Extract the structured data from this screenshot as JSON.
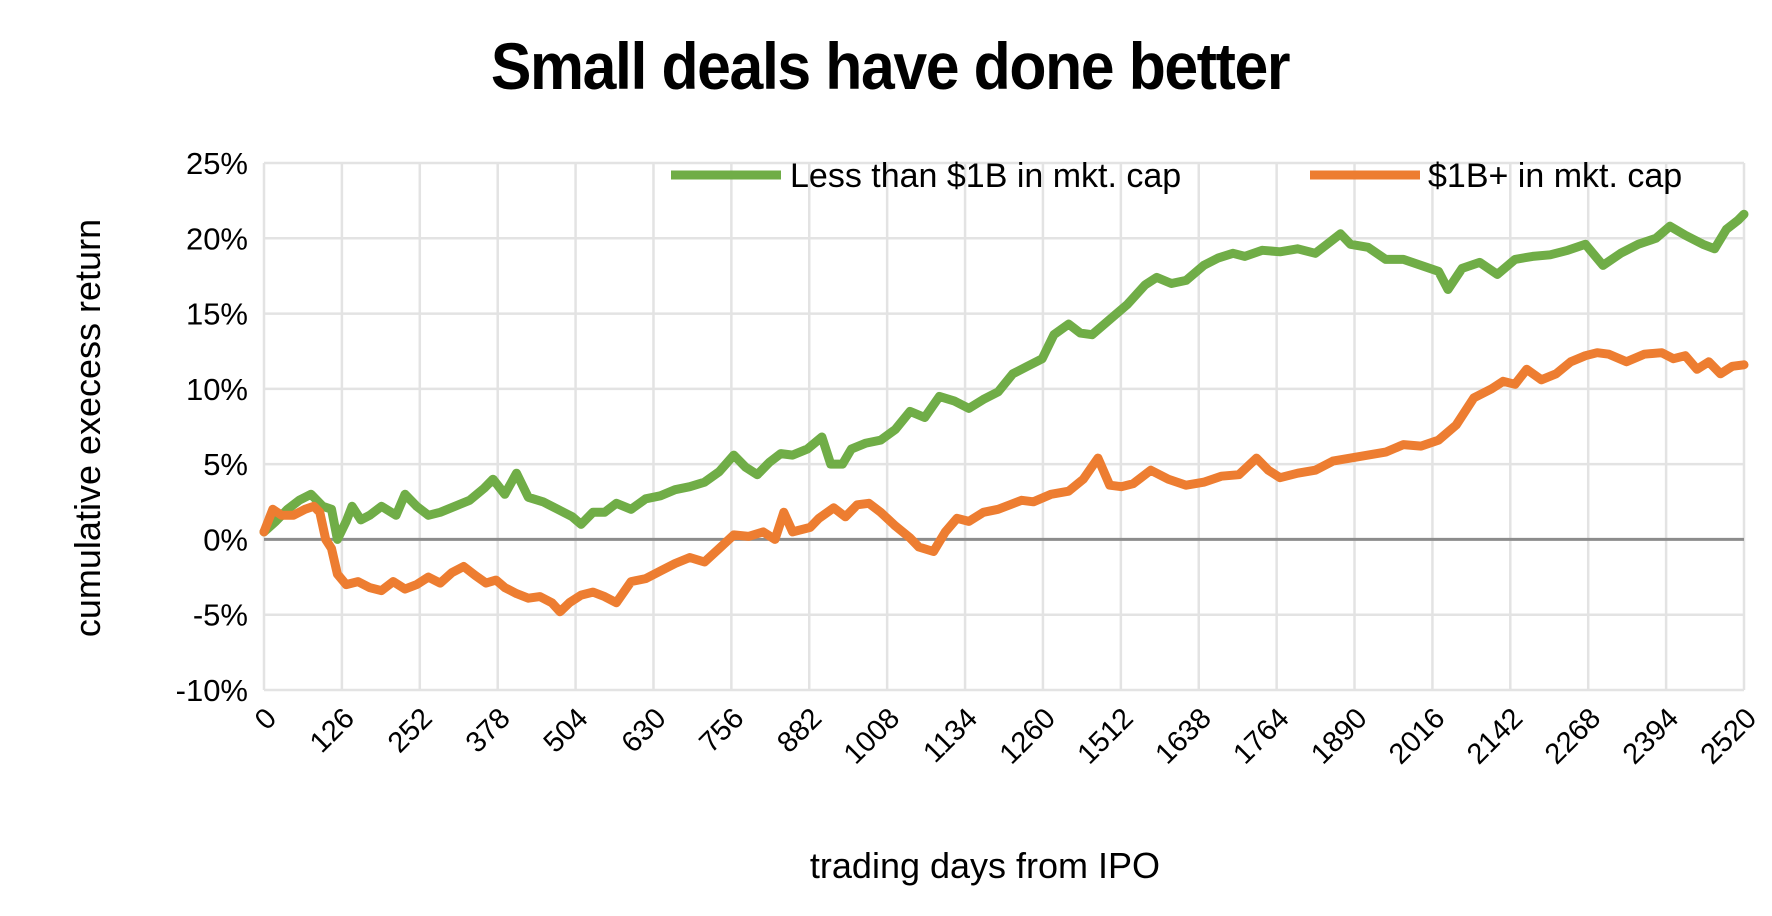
{
  "chart_data": {
    "type": "line",
    "title": "Small deals have done better",
    "xlabel": "trading days from IPO",
    "ylabel": "cumulative execess return",
    "x_ticks": [
      0,
      126,
      252,
      378,
      504,
      630,
      756,
      882,
      1008,
      1134,
      1260,
      1512,
      1638,
      1764,
      1890,
      2016,
      2142,
      2268,
      2394,
      2520
    ],
    "x_tick_labels": [
      "0",
      "126",
      "252",
      "378",
      "504",
      "630",
      "756",
      "882",
      "1008",
      "1134",
      "1260",
      "1512",
      "1638",
      "1764",
      "1890",
      "2016",
      "2142",
      "2268",
      "2394",
      "2520"
    ],
    "xlim": [
      0,
      2520
    ],
    "y_ticks": [
      25,
      20,
      15,
      10,
      5,
      0,
      -5,
      -10
    ],
    "y_tick_labels": [
      "25%",
      "20%",
      "15%",
      "10%",
      "5%",
      "0%",
      "-5%",
      "-10%"
    ],
    "ylim": [
      -10,
      25
    ],
    "y_unit": "%",
    "grid": true,
    "legend_position": "top-right",
    "series": [
      {
        "name": "Less than $1B in mkt. cap",
        "color": "#70AD47",
        "x": [
          0,
          20,
          40,
          60,
          80,
          100,
          115,
          125,
          140,
          150,
          165,
          180,
          200,
          225,
          240,
          260,
          280,
          300,
          325,
          350,
          375,
          390,
          410,
          430,
          450,
          475,
          500,
          525,
          540,
          560,
          580,
          600,
          625,
          650,
          675,
          700,
          725,
          750,
          775,
          800,
          820,
          840,
          860,
          880,
          900,
          925,
          950,
          965,
          985,
          1000,
          1025,
          1050,
          1075,
          1100,
          1125,
          1150,
          1175,
          1200,
          1225,
          1250,
          1275,
          1300,
          1325,
          1345,
          1370,
          1390,
          1410,
          1440,
          1470,
          1500,
          1520,
          1545,
          1570,
          1600,
          1625,
          1650,
          1670,
          1700,
          1730,
          1760,
          1790,
          1810,
          1833,
          1850,
          1880,
          1910,
          1940,
          1970,
          2000,
          2016,
          2040,
          2070,
          2100,
          2130,
          2160,
          2190,
          2220,
          2250,
          2280,
          2310,
          2340,
          2370,
          2394,
          2420,
          2450,
          2470,
          2490,
          2510,
          2520
        ],
        "y": [
          0.5,
          1.2,
          2.0,
          2.6,
          3.0,
          2.2,
          2.0,
          0.0,
          1.2,
          2.2,
          1.3,
          1.6,
          2.2,
          1.6,
          3.0,
          2.2,
          1.6,
          1.8,
          2.2,
          2.6,
          3.4,
          4.0,
          3.0,
          4.4,
          2.8,
          2.5,
          2.0,
          1.5,
          1.0,
          1.8,
          1.8,
          2.4,
          2.0,
          2.7,
          2.9,
          3.3,
          3.5,
          3.8,
          4.5,
          5.6,
          4.8,
          4.3,
          5.1,
          5.7,
          5.6,
          6.0,
          6.8,
          5.0,
          5.0,
          6.0,
          6.4,
          6.6,
          7.3,
          8.5,
          8.1,
          9.5,
          9.2,
          8.7,
          9.3,
          9.8,
          11.0,
          11.5,
          12.0,
          13.6,
          14.3,
          13.7,
          13.6,
          14.6,
          15.6,
          16.9,
          17.4,
          17.0,
          17.2,
          18.2,
          18.7,
          19.0,
          18.8,
          19.2,
          19.1,
          19.3,
          19.0,
          19.6,
          20.3,
          19.6,
          19.4,
          18.6,
          18.6,
          18.2,
          17.8,
          16.6,
          18.0,
          18.4,
          17.6,
          18.6,
          18.8,
          18.9,
          19.2,
          19.6,
          18.2,
          19.0,
          19.6,
          20.0,
          20.8,
          20.2,
          19.6,
          19.3,
          20.6,
          21.2,
          21.6
        ]
      },
      {
        "name": "$1B+ in mkt. cap",
        "color": "#ED7D31",
        "x": [
          0,
          15,
          30,
          50,
          70,
          85,
          95,
          105,
          115,
          125,
          140,
          160,
          180,
          200,
          220,
          240,
          260,
          280,
          300,
          320,
          340,
          360,
          378,
          395,
          410,
          430,
          450,
          470,
          490,
          504,
          520,
          540,
          560,
          580,
          600,
          625,
          650,
          675,
          700,
          725,
          750,
          775,
          800,
          825,
          850,
          870,
          885,
          900,
          930,
          945,
          970,
          990,
          1010,
          1030,
          1050,
          1075,
          1100,
          1115,
          1140,
          1160,
          1180,
          1200,
          1225,
          1250,
          1270,
          1290,
          1310,
          1340,
          1370,
          1395,
          1420,
          1440,
          1460,
          1480,
          1510,
          1540,
          1570,
          1600,
          1630,
          1660,
          1690,
          1710,
          1730,
          1760,
          1790,
          1820,
          1850,
          1880,
          1910,
          1940,
          1970,
          2000,
          2030,
          2060,
          2090,
          2110,
          2130,
          2150,
          2175,
          2200,
          2225,
          2250,
          2270,
          2290,
          2320,
          2350,
          2380,
          2400,
          2420,
          2440,
          2460,
          2480,
          2500,
          2520
        ],
        "y": [
          0.5,
          2.0,
          1.6,
          1.6,
          2.0,
          2.2,
          1.8,
          0.0,
          -0.6,
          -2.3,
          -3.0,
          -2.8,
          -3.2,
          -3.4,
          -2.8,
          -3.3,
          -3.0,
          -2.5,
          -2.9,
          -2.2,
          -1.8,
          -2.4,
          -2.9,
          -2.7,
          -3.2,
          -3.6,
          -3.9,
          -3.8,
          -4.2,
          -4.8,
          -4.2,
          -3.7,
          -3.5,
          -3.8,
          -4.2,
          -2.8,
          -2.6,
          -2.1,
          -1.6,
          -1.2,
          -1.5,
          -0.6,
          0.3,
          0.2,
          0.5,
          0.0,
          1.8,
          0.5,
          0.8,
          1.4,
          2.1,
          1.5,
          2.3,
          2.4,
          1.8,
          0.9,
          0.1,
          -0.5,
          -0.8,
          0.5,
          1.4,
          1.2,
          1.8,
          2.0,
          2.3,
          2.6,
          2.5,
          3.0,
          3.2,
          4.0,
          5.4,
          3.6,
          3.5,
          3.7,
          4.6,
          4.0,
          3.6,
          3.8,
          4.2,
          4.3,
          5.4,
          4.6,
          4.1,
          4.4,
          4.6,
          5.2,
          5.4,
          5.6,
          5.8,
          6.3,
          6.2,
          6.6,
          7.6,
          9.4,
          10.0,
          10.5,
          10.3,
          11.3,
          10.6,
          11.0,
          11.8,
          12.2,
          12.4,
          12.3,
          11.8,
          12.3,
          12.4,
          12.0,
          12.2,
          11.3,
          11.8,
          11.0,
          11.5,
          11.6
        ]
      }
    ]
  }
}
